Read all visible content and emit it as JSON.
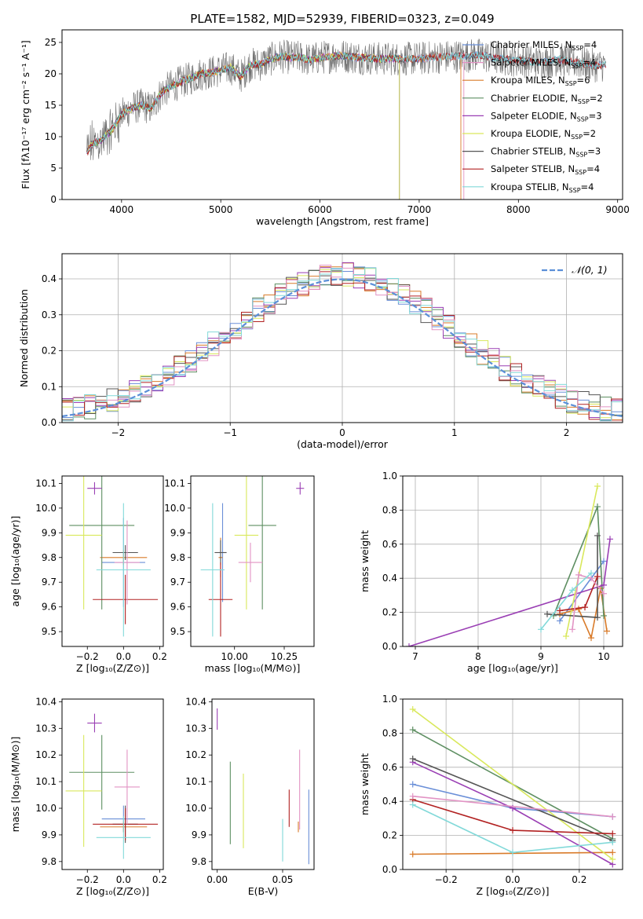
{
  "title": "PLATE=1582, MJD=52939, FIBERID=0323, z=0.049",
  "palette": [
    "#6a8fd8",
    "#d97b2a",
    "#5e8f62",
    "#9a3fb4",
    "#d9e85c",
    "#555555",
    "#b22222",
    "#e293c4",
    "#82d9d9"
  ],
  "chart_data": [
    {
      "id": "spectrum",
      "type": "line",
      "xlabel": "wavelength [Angstrom, rest frame]",
      "ylabel": "Flux [fλ10⁻¹⁷ erg cm⁻² s⁻¹ A⁻¹]",
      "xlim": [
        3400,
        9050
      ],
      "ylim": [
        0,
        27
      ],
      "xticks": [
        4000,
        5000,
        6000,
        7000,
        8000,
        9000
      ],
      "yticks": [
        0,
        5,
        10,
        15,
        20,
        25
      ],
      "legend_position": "right",
      "continuum": [
        [
          3650,
          7.5
        ],
        [
          3700,
          8.8
        ],
        [
          3800,
          9.5
        ],
        [
          3900,
          11
        ],
        [
          4000,
          13.5
        ],
        [
          4100,
          14.5
        ],
        [
          4200,
          15
        ],
        [
          4300,
          14.5
        ],
        [
          4400,
          17
        ],
        [
          4500,
          18
        ],
        [
          4600,
          18.7
        ],
        [
          4700,
          19.3
        ],
        [
          4800,
          20
        ],
        [
          4900,
          20.2
        ],
        [
          5000,
          20.6
        ],
        [
          5100,
          21
        ],
        [
          5200,
          19.6
        ],
        [
          5300,
          21.5
        ],
        [
          5400,
          21.5
        ],
        [
          5500,
          22.3
        ],
        [
          5600,
          22.8
        ],
        [
          5700,
          22.6
        ],
        [
          5800,
          22.6
        ],
        [
          5900,
          22.2
        ],
        [
          6000,
          22.6
        ],
        [
          6200,
          22.9
        ],
        [
          6400,
          22.6
        ],
        [
          6600,
          22.4
        ],
        [
          6800,
          22.4
        ],
        [
          7000,
          22.4
        ],
        [
          7200,
          22.7
        ],
        [
          7400,
          22.8
        ],
        [
          7600,
          23
        ],
        [
          7800,
          22.4
        ],
        [
          8000,
          22.2
        ],
        [
          8200,
          21.8
        ],
        [
          8400,
          22.3
        ],
        [
          8600,
          21.8
        ],
        [
          8800,
          21.3
        ],
        [
          8880,
          21.5
        ]
      ],
      "series": [
        {
          "name": "Chabrier MILES",
          "nssp": "4",
          "color": "#6a8fd8",
          "xmax": 8880
        },
        {
          "name": "Salpeter MILES",
          "nssp": "4",
          "color": "#e293c4",
          "xmax": 7450
        },
        {
          "name": "Kroupa MILES",
          "nssp": "6",
          "color": "#d97b2a",
          "xmax": 7420
        },
        {
          "name": "Chabrier ELODIE",
          "nssp": "2",
          "color": "#5e8f62",
          "xmax": 6800
        },
        {
          "name": "Salpeter ELODIE",
          "nssp": "3",
          "color": "#9a3fb4",
          "xmax": 6800
        },
        {
          "name": "Kroupa ELODIE",
          "nssp": "2",
          "color": "#d9e85c",
          "xmax": 6800
        },
        {
          "name": "Chabrier STELIB",
          "nssp": "3",
          "color": "#555555",
          "xmax": 8880
        },
        {
          "name": "Salpeter STELIB",
          "nssp": "4",
          "color": "#b22222",
          "xmax": 8880
        },
        {
          "name": "Kroupa STELIB",
          "nssp": "4",
          "color": "#82d9d9",
          "xmax": 8880
        }
      ]
    },
    {
      "id": "residuals",
      "type": "line",
      "xlabel": "(data-model)/error",
      "ylabel": "Normed distribution",
      "xlim": [
        -2.5,
        2.5
      ],
      "ylim": [
        0,
        0.47
      ],
      "xticks": [
        -2,
        -1,
        0,
        1,
        2
      ],
      "yticks": [
        0.0,
        0.1,
        0.2,
        0.3,
        0.4
      ],
      "grid": true,
      "legend": "𝒩(0, 1)",
      "legend_position": "top-right",
      "bin_width": 0.1,
      "reference_curve": {
        "name": "𝒩(0, 1)",
        "mean": 0,
        "sigma": 1,
        "color": "#5b8fd8"
      },
      "histogram_series": 9
    },
    {
      "id": "age-vs-Z",
      "type": "scatter",
      "xlabel": "Z [log₁₀(Z/Z⊙)]",
      "ylabel": "age [log₁₀(age/yr)]",
      "xlim": [
        -0.34,
        0.22
      ],
      "ylim": [
        9.44,
        10.13
      ],
      "xticks": [
        -0.2,
        0.0,
        0.2
      ],
      "yticks": [
        9.5,
        9.6,
        9.7,
        9.8,
        9.9,
        10.0,
        10.1
      ],
      "points": [
        {
          "x": 0.0,
          "y": 9.78,
          "xerr": 0.12,
          "yerr": 0.18,
          "color": "#6a8fd8"
        },
        {
          "x": 0.0,
          "y": 9.8,
          "xerr": 0.13,
          "yerr": 0.03,
          "color": "#d97b2a"
        },
        {
          "x": -0.12,
          "y": 9.93,
          "xerr": 0.18,
          "yerr": 0.34,
          "color": "#5e8f62"
        },
        {
          "x": -0.16,
          "y": 10.08,
          "xerr": 0.04,
          "yerr": 0.025,
          "color": "#9a3fb4"
        },
        {
          "x": -0.22,
          "y": 9.89,
          "xerr": 0.1,
          "yerr": 0.3,
          "color": "#d9e85c"
        },
        {
          "x": 0.01,
          "y": 9.82,
          "xerr": 0.07,
          "yerr": 0.03,
          "color": "#555555"
        },
        {
          "x": 0.01,
          "y": 9.63,
          "xerr": 0.18,
          "yerr": 0.1,
          "color": "#b22222"
        },
        {
          "x": 0.02,
          "y": 9.78,
          "xerr": 0.07,
          "yerr": 0.17,
          "color": "#e293c4"
        },
        {
          "x": 0.0,
          "y": 9.75,
          "xerr": 0.15,
          "yerr": 0.27,
          "color": "#82d9d9"
        }
      ]
    },
    {
      "id": "age-vs-mass",
      "type": "scatter",
      "xlabel": "mass [log₁₀(M/M⊙)]",
      "ylabel": "",
      "xlim": [
        9.78,
        10.4
      ],
      "ylim": [
        9.44,
        10.13
      ],
      "xticks": [
        10.0,
        10.25
      ],
      "yticks": [
        9.5,
        9.6,
        9.7,
        9.8,
        9.9,
        10.0,
        10.1
      ],
      "points": [
        {
          "x": 9.94,
          "y": 9.82,
          "xerr": 0.02,
          "yerr": 0.2,
          "color": "#6a8fd8"
        },
        {
          "x": 9.93,
          "y": 9.8,
          "xerr": 0.01,
          "yerr": 0.08,
          "color": "#d97b2a"
        },
        {
          "x": 10.14,
          "y": 9.93,
          "xerr": 0.07,
          "yerr": 0.34,
          "color": "#5e8f62"
        },
        {
          "x": 10.33,
          "y": 10.08,
          "xerr": 0.02,
          "yerr": 0.025,
          "color": "#9a3fb4"
        },
        {
          "x": 10.06,
          "y": 9.89,
          "xerr": 0.06,
          "yerr": 0.3,
          "color": "#d9e85c"
        },
        {
          "x": 9.93,
          "y": 9.82,
          "xerr": 0.03,
          "yerr": 0.05,
          "color": "#555555"
        },
        {
          "x": 9.93,
          "y": 9.63,
          "xerr": 0.06,
          "yerr": 0.15,
          "color": "#b22222"
        },
        {
          "x": 10.08,
          "y": 9.78,
          "xerr": 0.06,
          "yerr": 0.08,
          "color": "#e293c4"
        },
        {
          "x": 9.89,
          "y": 9.75,
          "xerr": 0.06,
          "yerr": 0.27,
          "color": "#82d9d9"
        }
      ]
    },
    {
      "id": "weight-vs-age",
      "type": "line",
      "xlabel": "age [log₁₀(age/yr)]",
      "ylabel": "mass weight",
      "xlim": [
        6.8,
        10.3
      ],
      "ylim": [
        0,
        1.0
      ],
      "xticks": [
        7,
        8,
        9,
        10
      ],
      "yticks": [
        0.0,
        0.2,
        0.4,
        0.6,
        0.8,
        1.0
      ],
      "grid": true,
      "series": [
        {
          "color": "#6a8fd8",
          "x": [
            9.3,
            10.0
          ],
          "y": [
            0.15,
            0.5
          ]
        },
        {
          "color": "#d97b2a",
          "x": [
            9.3,
            9.6,
            9.8,
            9.95,
            10.05
          ],
          "y": [
            0.19,
            0.22,
            0.05,
            0.34,
            0.09
          ]
        },
        {
          "color": "#5e8f62",
          "x": [
            9.2,
            9.9,
            10.0
          ],
          "y": [
            0.18,
            0.82,
            0.18
          ]
        },
        {
          "color": "#9a3fb4",
          "x": [
            6.9,
            10.0,
            10.1
          ],
          "y": [
            0.0,
            0.36,
            0.63
          ]
        },
        {
          "color": "#d9e85c",
          "x": [
            9.4,
            9.9
          ],
          "y": [
            0.06,
            0.94
          ]
        },
        {
          "color": "#555555",
          "x": [
            9.1,
            9.9,
            9.9
          ],
          "y": [
            0.19,
            0.17,
            0.65
          ]
        },
        {
          "color": "#b22222",
          "x": [
            9.3,
            9.7,
            9.9
          ],
          "y": [
            0.21,
            0.23,
            0.41
          ]
        },
        {
          "color": "#e293c4",
          "x": [
            9.5,
            9.6,
            9.8,
            10.0
          ],
          "y": [
            0.1,
            0.42,
            0.4,
            0.31
          ]
        },
        {
          "color": "#82d9d9",
          "x": [
            9.0,
            9.5,
            9.8
          ],
          "y": [
            0.1,
            0.33,
            0.43
          ]
        }
      ]
    },
    {
      "id": "mass-vs-Z",
      "type": "scatter",
      "xlabel": "Z [log₁₀(Z/Z⊙)]",
      "ylabel": "mass [log₁₀(M/M⊙)]",
      "xlim": [
        -0.34,
        0.22
      ],
      "ylim": [
        9.77,
        10.41
      ],
      "xticks": [
        -0.2,
        0.0,
        0.2
      ],
      "yticks": [
        9.8,
        9.9,
        10.0,
        10.1,
        10.2,
        10.3,
        10.4
      ],
      "points": [
        {
          "x": 0.0,
          "y": 9.96,
          "xerr": 0.12,
          "yerr": 0.05,
          "color": "#6a8fd8"
        },
        {
          "x": 0.0,
          "y": 9.93,
          "xerr": 0.13,
          "yerr": 0.02,
          "color": "#d97b2a"
        },
        {
          "x": -0.12,
          "y": 10.135,
          "xerr": 0.18,
          "yerr": 0.14,
          "color": "#5e8f62"
        },
        {
          "x": -0.16,
          "y": 10.32,
          "xerr": 0.04,
          "yerr": 0.035,
          "color": "#9a3fb4"
        },
        {
          "x": -0.22,
          "y": 10.065,
          "xerr": 0.1,
          "yerr": 0.21,
          "color": "#d9e85c"
        },
        {
          "x": 0.01,
          "y": 9.94,
          "xerr": 0.07,
          "yerr": 0.07,
          "color": "#555555"
        },
        {
          "x": 0.01,
          "y": 9.94,
          "xerr": 0.18,
          "yerr": 0.06,
          "color": "#b22222"
        },
        {
          "x": 0.02,
          "y": 10.08,
          "xerr": 0.07,
          "yerr": 0.14,
          "color": "#e293c4"
        },
        {
          "x": 0.0,
          "y": 9.89,
          "xerr": 0.15,
          "yerr": 0.08,
          "color": "#82d9d9"
        }
      ]
    },
    {
      "id": "mass-vs-EBV",
      "type": "scatter",
      "xlabel": "E(B-V)",
      "ylabel": "",
      "xlim": [
        -0.004,
        0.074
      ],
      "ylim": [
        9.77,
        10.41
      ],
      "xticks": [
        0.0,
        0.05
      ],
      "yticks": [
        9.8,
        9.9,
        10.0,
        10.1,
        10.2,
        10.3,
        10.4
      ],
      "points": [
        {
          "x": 0.07,
          "y": 9.93,
          "xerr": 0,
          "yerr": 0.14,
          "color": "#6a8fd8"
        },
        {
          "x": 0.062,
          "y": 9.93,
          "xerr": 0,
          "yerr": 0.02,
          "color": "#d97b2a"
        },
        {
          "x": 0.01,
          "y": 10.02,
          "xerr": 0,
          "yerr": 0.155,
          "color": "#5e8f62"
        },
        {
          "x": 0.0,
          "y": 10.335,
          "xerr": 0,
          "yerr": 0.04,
          "color": "#9a3fb4"
        },
        {
          "x": 0.02,
          "y": 9.99,
          "xerr": 0,
          "yerr": 0.14,
          "color": "#d9e85c"
        },
        {
          "x": 0.055,
          "y": 10.0,
          "xerr": 0,
          "yerr": 0.07,
          "color": "#b22222"
        },
        {
          "x": 0.063,
          "y": 10.07,
          "xerr": 0,
          "yerr": 0.15,
          "color": "#e293c4"
        },
        {
          "x": 0.05,
          "y": 9.88,
          "xerr": 0,
          "yerr": 0.08,
          "color": "#82d9d9"
        }
      ]
    },
    {
      "id": "weight-vs-Z",
      "type": "line",
      "xlabel": "Z [log₁₀(Z/Z⊙)]",
      "ylabel": "mass weight",
      "xlim": [
        -0.33,
        0.33
      ],
      "ylim": [
        0,
        1.0
      ],
      "xticks": [
        -0.2,
        0.0,
        0.2
      ],
      "yticks": [
        0.0,
        0.2,
        0.4,
        0.6,
        0.8,
        1.0
      ],
      "grid": true,
      "series": [
        {
          "color": "#6a8fd8",
          "x": [
            -0.3,
            0.0,
            0.3
          ],
          "y": [
            0.5,
            0.36,
            0.31
          ]
        },
        {
          "color": "#d97b2a",
          "x": [
            -0.3,
            0.3
          ],
          "y": [
            0.09,
            0.1
          ]
        },
        {
          "color": "#5e8f62",
          "x": [
            -0.3,
            0.3
          ],
          "y": [
            0.82,
            0.18
          ]
        },
        {
          "color": "#9a3fb4",
          "x": [
            -0.3,
            0.0,
            0.3
          ],
          "y": [
            0.63,
            0.36,
            0.03
          ]
        },
        {
          "color": "#d9e85c",
          "x": [
            -0.3,
            0.3
          ],
          "y": [
            0.94,
            0.06
          ]
        },
        {
          "color": "#555555",
          "x": [
            -0.3,
            0.3
          ],
          "y": [
            0.65,
            0.17
          ]
        },
        {
          "color": "#b22222",
          "x": [
            -0.3,
            0.0,
            0.3
          ],
          "y": [
            0.41,
            0.23,
            0.21
          ]
        },
        {
          "color": "#e293c4",
          "x": [
            -0.3,
            0.3
          ],
          "y": [
            0.43,
            0.31
          ]
        },
        {
          "color": "#82d9d9",
          "x": [
            -0.3,
            0.0,
            0.3
          ],
          "y": [
            0.38,
            0.1,
            0.16
          ]
        }
      ]
    }
  ]
}
